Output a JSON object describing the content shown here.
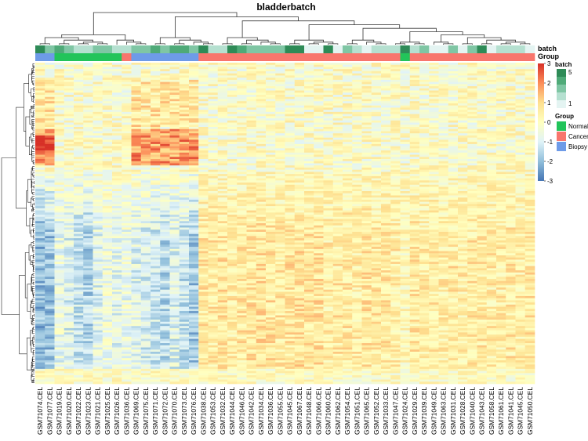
{
  "chart_data": {
    "type": "heatmap",
    "title": "bladderbatch",
    "row_annotation_labels": [
      "batch",
      "Group"
    ],
    "columns": [
      "GSM71074.CEL",
      "GSM71077.CEL",
      "GSM71019.CEL",
      "GSM71020.CEL",
      "GSM71022.CEL",
      "GSM71023.CEL",
      "GSM71021.CEL",
      "GSM71025.CEL",
      "GSM71026.CEL",
      "GSM71036.CEL",
      "GSM71069.CEL",
      "GSM71075.CEL",
      "GSM71071.CEL",
      "GSM71072.CEL",
      "GSM71070.CEL",
      "GSM71073.CEL",
      "GSM71076.CEL",
      "GSM71038.CEL",
      "GSM71053.CEL",
      "GSM71032.CEL",
      "GSM71044.CEL",
      "GSM71046.CEL",
      "GSM71042.CEL",
      "GSM71034.CEL",
      "GSM71036.CEL",
      "GSM71055.CEL",
      "GSM71045.CEL",
      "GSM71067.CEL",
      "GSM71048.CEL",
      "GSM71066.CEL",
      "GSM71060.CEL",
      "GSM71062.CEL",
      "GSM71054.CEL",
      "GSM71051.CEL",
      "GSM71065.CEL",
      "GSM71052.CEL",
      "GSM71033.CEL",
      "GSM71047.CEL",
      "GSM71024.CEL",
      "GSM71029.CEL",
      "GSM71039.CEL",
      "GSM71049.CEL",
      "GSM71063.CEL",
      "GSM71031.CEL",
      "GSM71028.CEL",
      "GSM71040.CEL",
      "GSM71043.CEL",
      "GSM71058.CEL",
      "GSM71061.CEL",
      "GSM71041.CEL",
      "GSM71045.CEL",
      "GSM71050.CEL"
    ],
    "group": [
      "Biopsy",
      "Biopsy",
      "Normal",
      "Normal",
      "Normal",
      "Normal",
      "Normal",
      "Normal",
      "Normal",
      "Cancer",
      "Biopsy",
      "Biopsy",
      "Biopsy",
      "Biopsy",
      "Biopsy",
      "Biopsy",
      "Biopsy",
      "Cancer",
      "Cancer",
      "Cancer",
      "Cancer",
      "Cancer",
      "Cancer",
      "Cancer",
      "Cancer",
      "Cancer",
      "Cancer",
      "Cancer",
      "Cancer",
      "Cancer",
      "Cancer",
      "Cancer",
      "Cancer",
      "Cancer",
      "Cancer",
      "Cancer",
      "Cancer",
      "Cancer",
      "Normal",
      "Cancer",
      "Cancer",
      "Cancer",
      "Cancer",
      "Cancer",
      "Cancer",
      "Cancer",
      "Cancer",
      "Cancer",
      "Cancer",
      "Cancer",
      "Cancer",
      "Cancer"
    ],
    "batch": [
      5,
      3,
      4,
      3,
      2,
      2,
      3,
      3,
      2,
      2,
      3,
      3,
      4,
      3,
      4,
      4,
      3,
      5,
      2,
      2,
      5,
      4,
      3,
      3,
      3,
      3,
      5,
      5,
      1,
      1,
      5,
      1,
      3,
      2,
      1,
      2,
      2,
      2,
      5,
      2,
      3,
      1,
      1,
      3,
      1,
      3,
      5,
      1,
      2,
      2,
      2,
      1
    ],
    "column_profile": [
      -2.0,
      -1.9,
      -0.7,
      -1.0,
      -1.3,
      -1.6,
      -0.9,
      -0.5,
      -0.8,
      -0.6,
      -0.9,
      -1.1,
      -1.2,
      -1.5,
      -1.0,
      -1.4,
      -1.8,
      0.6,
      0.6,
      0.7,
      0.5,
      0.6,
      0.7,
      0.8,
      0.7,
      0.6,
      0.7,
      0.8,
      0.7,
      0.8,
      0.5,
      0.6,
      0.6,
      0.5,
      0.7,
      0.6,
      0.6,
      0.5,
      0.2,
      0.6,
      0.5,
      0.6,
      0.5,
      0.6,
      0.5,
      0.6,
      0.6,
      0.5,
      0.5,
      0.6,
      0.5,
      0.6
    ],
    "color_scale": {
      "breaks": [
        -3,
        -2,
        -1,
        0,
        1,
        2,
        3
      ],
      "tick_labels": [
        "-3",
        "-2",
        "-1",
        "0",
        "1",
        "2",
        "3"
      ],
      "colors": [
        "#4575b4",
        "#91bfdb",
        "#e0f3f8",
        "#ffffbf",
        "#fee090",
        "#fc8d59",
        "#d73027"
      ]
    },
    "legend": {
      "batch_title": "batch",
      "batch_labels": [
        "5",
        "1"
      ],
      "batch_colors": [
        "#2e8b57",
        "#4faa78",
        "#7fc6a4",
        "#b5e0d0",
        "#e4f4f2"
      ],
      "group_title": "Group",
      "group_items": [
        {
          "label": "Normal",
          "color": "#22c45a"
        },
        {
          "label": "Cancer",
          "color": "#f8766d"
        },
        {
          "label": "Biopsy",
          "color": "#6e9be8"
        }
      ]
    }
  }
}
